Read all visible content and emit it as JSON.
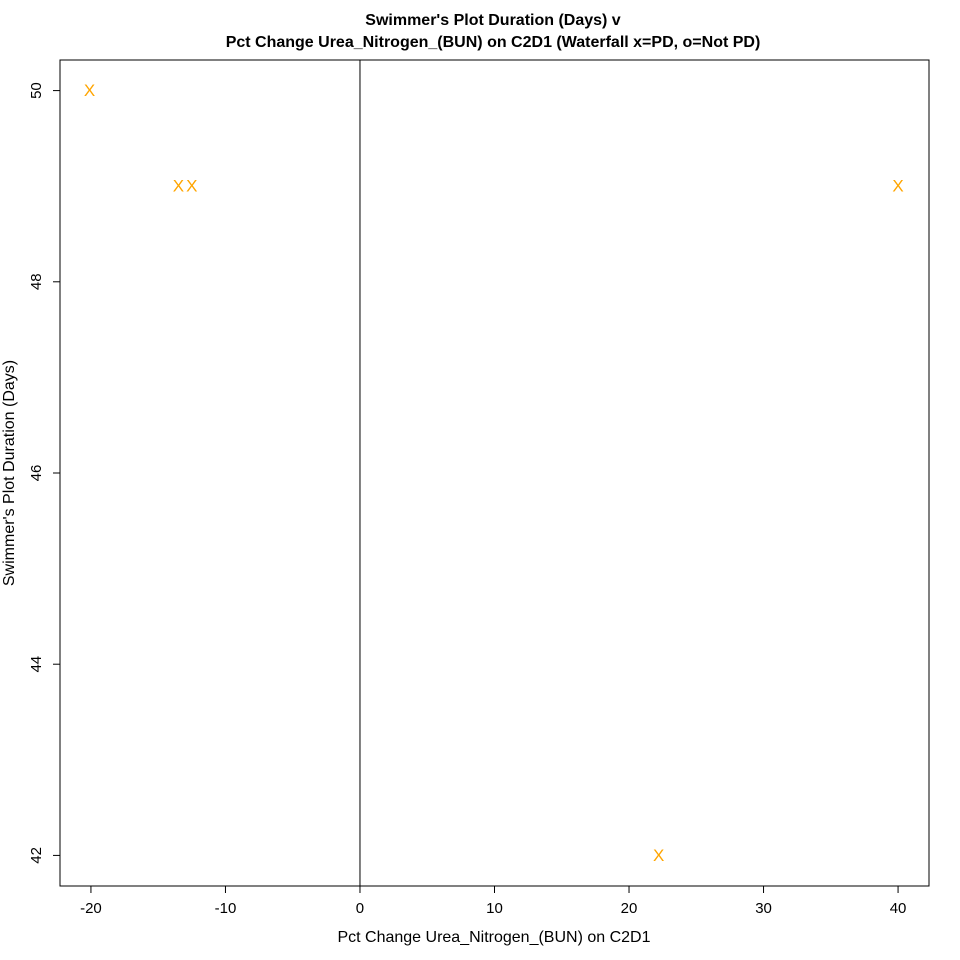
{
  "chart_data": {
    "type": "scatter",
    "title_line1": "Swimmer's Plot Duration (Days) v",
    "title_line2": "Pct Change Urea_Nitrogen_(BUN) on C2D1 (Waterfall x=PD, o=Not PD)",
    "xlabel": "Pct Change Urea_Nitrogen_(BUN) on C2D1",
    "ylabel": "Swimmer's Plot Duration (Days)",
    "xlim": [
      -22.3,
      42.3
    ],
    "ylim": [
      41.68,
      50.32
    ],
    "x_ticks": [
      -20,
      -10,
      0,
      10,
      20,
      30,
      40
    ],
    "y_ticks": [
      42,
      44,
      46,
      48,
      50
    ],
    "reference_line_x": 0,
    "marker_color": "#FFA500",
    "series": [
      {
        "marker": "X",
        "points": [
          {
            "x": -20.1,
            "y": 50
          },
          {
            "x": -13.5,
            "y": 49
          },
          {
            "x": -12.5,
            "y": 49
          },
          {
            "x": 40.0,
            "y": 49
          },
          {
            "x": 22.2,
            "y": 42
          }
        ]
      }
    ]
  }
}
